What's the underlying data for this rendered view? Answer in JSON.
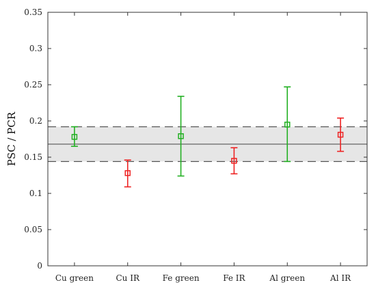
{
  "chart_data": {
    "type": "scatter",
    "title": "",
    "xlabel": "",
    "ylabel": "PSC / PCR",
    "ylim": [
      0,
      0.35
    ],
    "y_ticks": [
      0,
      0.05,
      0.1,
      0.15,
      0.2,
      0.25,
      0.3,
      0.35
    ],
    "y_tick_labels": [
      "0",
      "0.05",
      "0.1",
      "0.15",
      "0.2",
      "0.25",
      "0.3",
      "0.35"
    ],
    "grid": false,
    "categories": [
      "Cu green",
      "Cu IR",
      "Fe green",
      "Fe IR",
      "Al green",
      "Al IR"
    ],
    "points": [
      {
        "category": "Cu green",
        "value": 0.178,
        "lower": 0.165,
        "upper": 0.192,
        "color": "#22b022"
      },
      {
        "category": "Cu IR",
        "value": 0.128,
        "lower": 0.109,
        "upper": 0.146,
        "color": "#ee2222"
      },
      {
        "category": "Fe green",
        "value": 0.179,
        "lower": 0.124,
        "upper": 0.234,
        "color": "#22b022"
      },
      {
        "category": "Fe IR",
        "value": 0.145,
        "lower": 0.127,
        "upper": 0.163,
        "color": "#ee2222"
      },
      {
        "category": "Al green",
        "value": 0.195,
        "lower": 0.144,
        "upper": 0.247,
        "color": "#22b022"
      },
      {
        "category": "Al IR",
        "value": 0.181,
        "lower": 0.158,
        "upper": 0.204,
        "color": "#ee2222"
      }
    ],
    "reference_band": {
      "mean": 0.168,
      "lower": 0.144,
      "upper": 0.192,
      "fill_color": "#e6e6e6",
      "line_color": "#555555"
    }
  }
}
